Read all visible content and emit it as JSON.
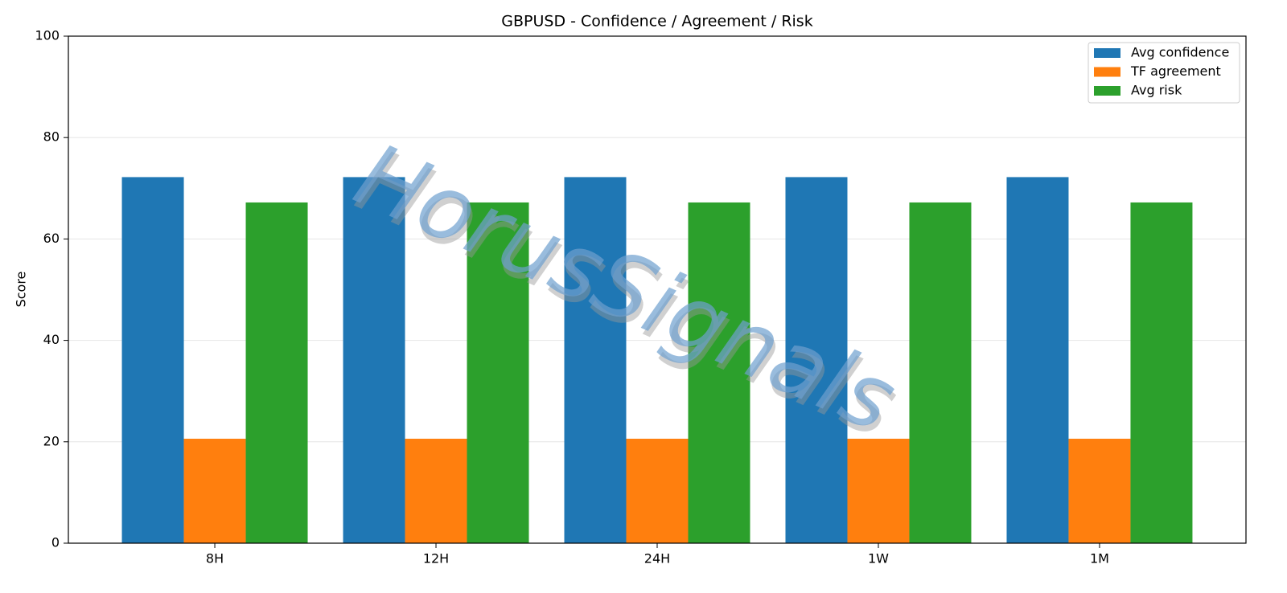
{
  "chart_data": {
    "type": "grouped_bar",
    "title": "GBPUSD - Confidence / Agreement / Risk",
    "y_label": "Score",
    "watermark": "HorusSignals",
    "categories": [
      "8H",
      "12H",
      "24H",
      "1W",
      "1M"
    ],
    "series": [
      {
        "name": "Avg confidence",
        "color": "#1f77b4",
        "values": [
          72.2,
          72.2,
          72.2,
          72.2,
          72.2
        ]
      },
      {
        "name": "TF agreement",
        "color": "#ff7f0e",
        "values": [
          20.6,
          20.6,
          20.6,
          20.6,
          20.6
        ]
      },
      {
        "name": "Avg risk",
        "color": "#2ca02c",
        "values": [
          67.2,
          67.2,
          67.2,
          67.2,
          67.2
        ]
      }
    ],
    "ylim": [
      0,
      100
    ],
    "yticks": [
      0,
      20,
      40,
      60,
      80,
      100
    ],
    "grid": true,
    "legend": "upper right"
  }
}
